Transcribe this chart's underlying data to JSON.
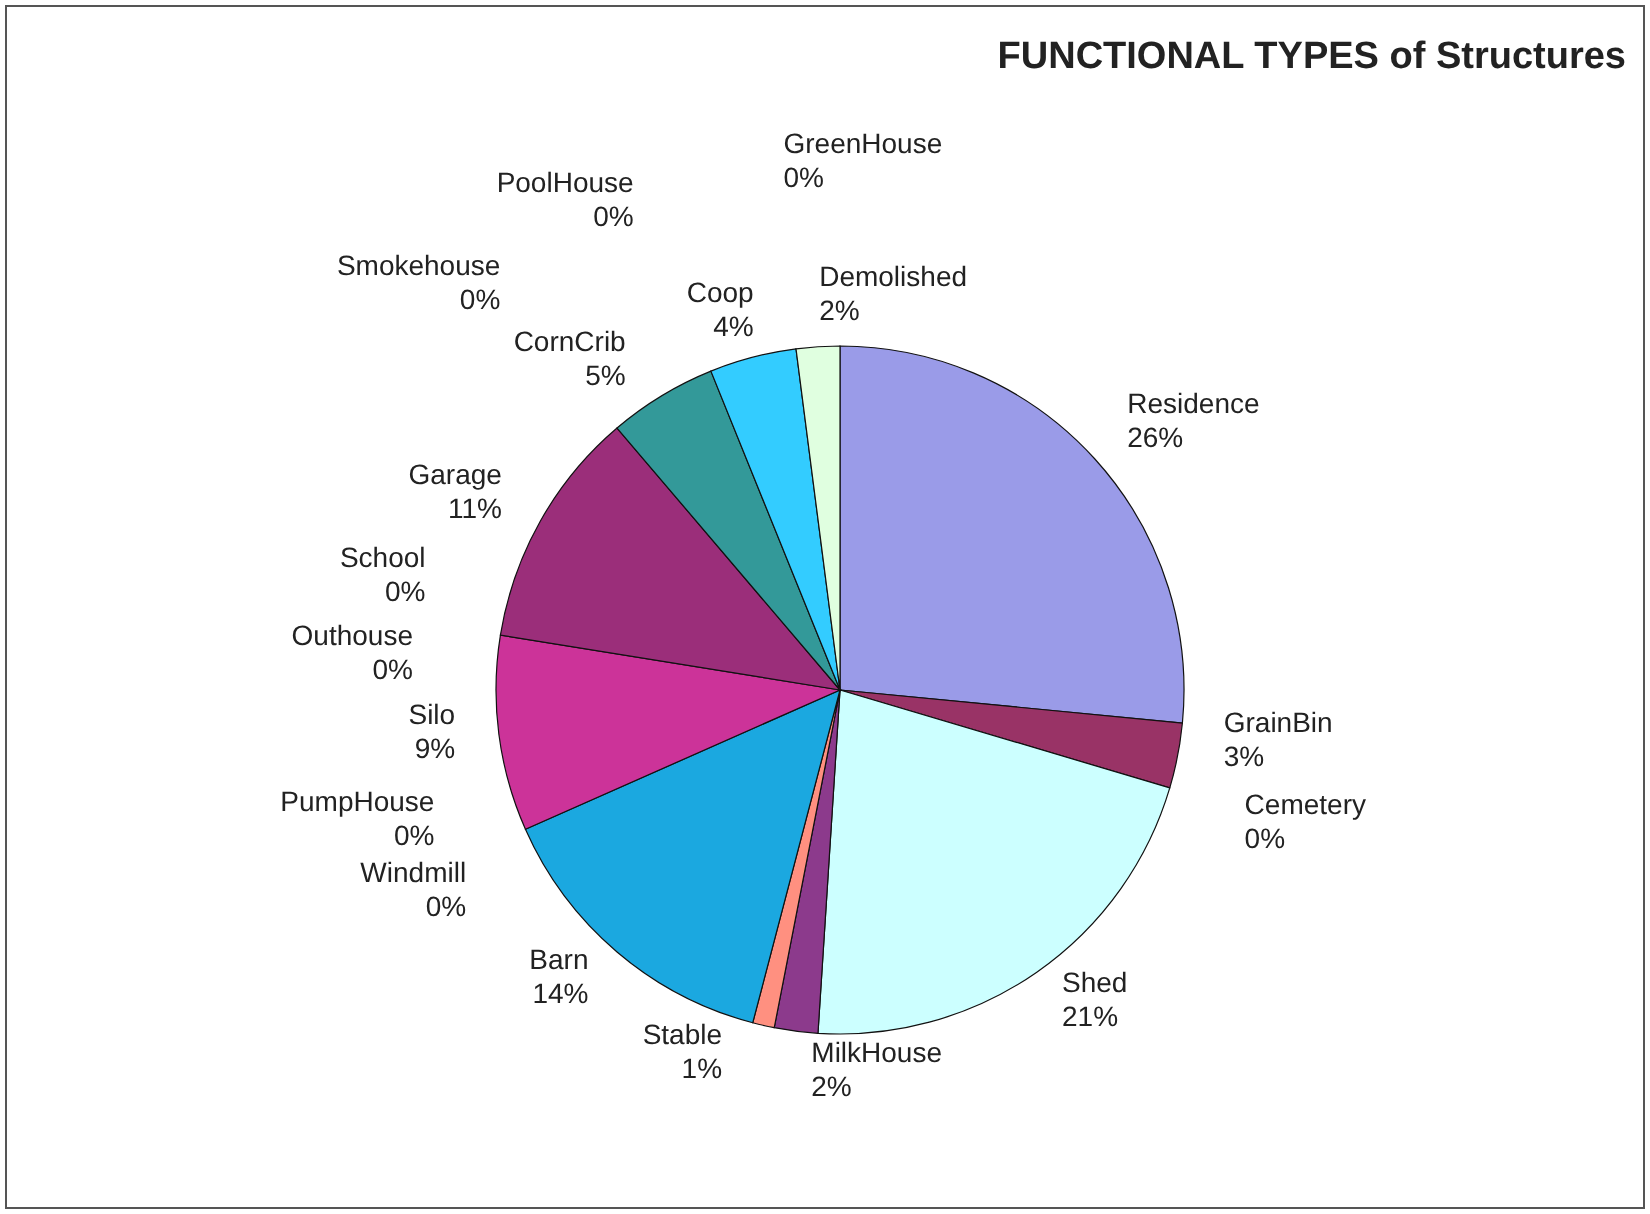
{
  "chart_data": {
    "type": "pie",
    "title": "FUNCTIONAL TYPES of Structures",
    "categories": [
      "Residence",
      "GrainBin",
      "Cemetery",
      "Shed",
      "MilkHouse",
      "Stable",
      "Barn",
      "Windmill",
      "PumpHouse",
      "Silo",
      "Outhouse",
      "School",
      "Garage",
      "Smokehouse",
      "CornCrib",
      "PoolHouse",
      "Coop",
      "GreenHouse",
      "Demolished"
    ],
    "values": [
      26,
      3,
      0,
      21,
      2,
      1,
      14,
      0,
      0,
      9,
      0,
      0,
      11,
      0,
      5,
      0,
      4,
      0,
      2
    ],
    "value_labels": [
      "26%",
      "3%",
      "0%",
      "21%",
      "2%",
      "1%",
      "14%",
      "0%",
      "0%",
      "9%",
      "0%",
      "0%",
      "11%",
      "0%",
      "5%",
      "0%",
      "4%",
      "0%",
      "2%"
    ],
    "colors": [
      "#9a9be8",
      "#993366",
      "#ffffcc",
      "#ccffff",
      "#8c3a8c",
      "#ff9080",
      "#1ba8e0",
      "#ccccff",
      "#000080",
      "#cc3399",
      "#ffff00",
      "#00ffff",
      "#9b2e7a",
      "#e03020",
      "#339999",
      "#0000ff",
      "#33ccff",
      "#ccffff",
      "#e0ffe0"
    ]
  }
}
